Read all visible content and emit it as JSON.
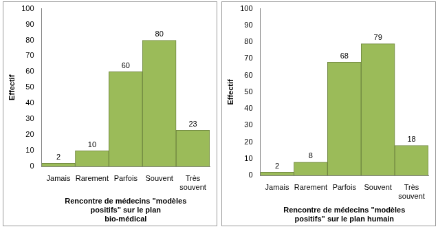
{
  "chart_data": [
    {
      "type": "bar",
      "x_label": "Rencontre de médecins \"modèles positifs\" sur le plan bio-médical",
      "y_label": "Effectif",
      "categories": [
        "Jamais",
        "Rarement",
        "Parfois",
        "Souvent",
        "Très souvent"
      ],
      "values": [
        2,
        10,
        60,
        80,
        23
      ],
      "color": "#9bbb59",
      "ylim": [
        0,
        100
      ],
      "yticks": [
        0,
        10,
        20,
        30,
        40,
        50,
        60,
        70,
        80,
        90,
        100
      ],
      "grid": false,
      "data_labels": true
    },
    {
      "type": "bar",
      "x_label": "Rencontre de médecins \"modèles positifs\" sur le plan humain",
      "y_label": "Effectif",
      "categories": [
        "Jamais",
        "Rarement",
        "Parfois",
        "Souvent",
        "Très souvent"
      ],
      "values": [
        2,
        8,
        68,
        79,
        18
      ],
      "color": "#9bbb59",
      "ylim": [
        0,
        100
      ],
      "yticks": [
        0,
        10,
        20,
        30,
        40,
        50,
        60,
        70,
        80,
        90,
        100
      ],
      "grid": false,
      "data_labels": true
    }
  ]
}
